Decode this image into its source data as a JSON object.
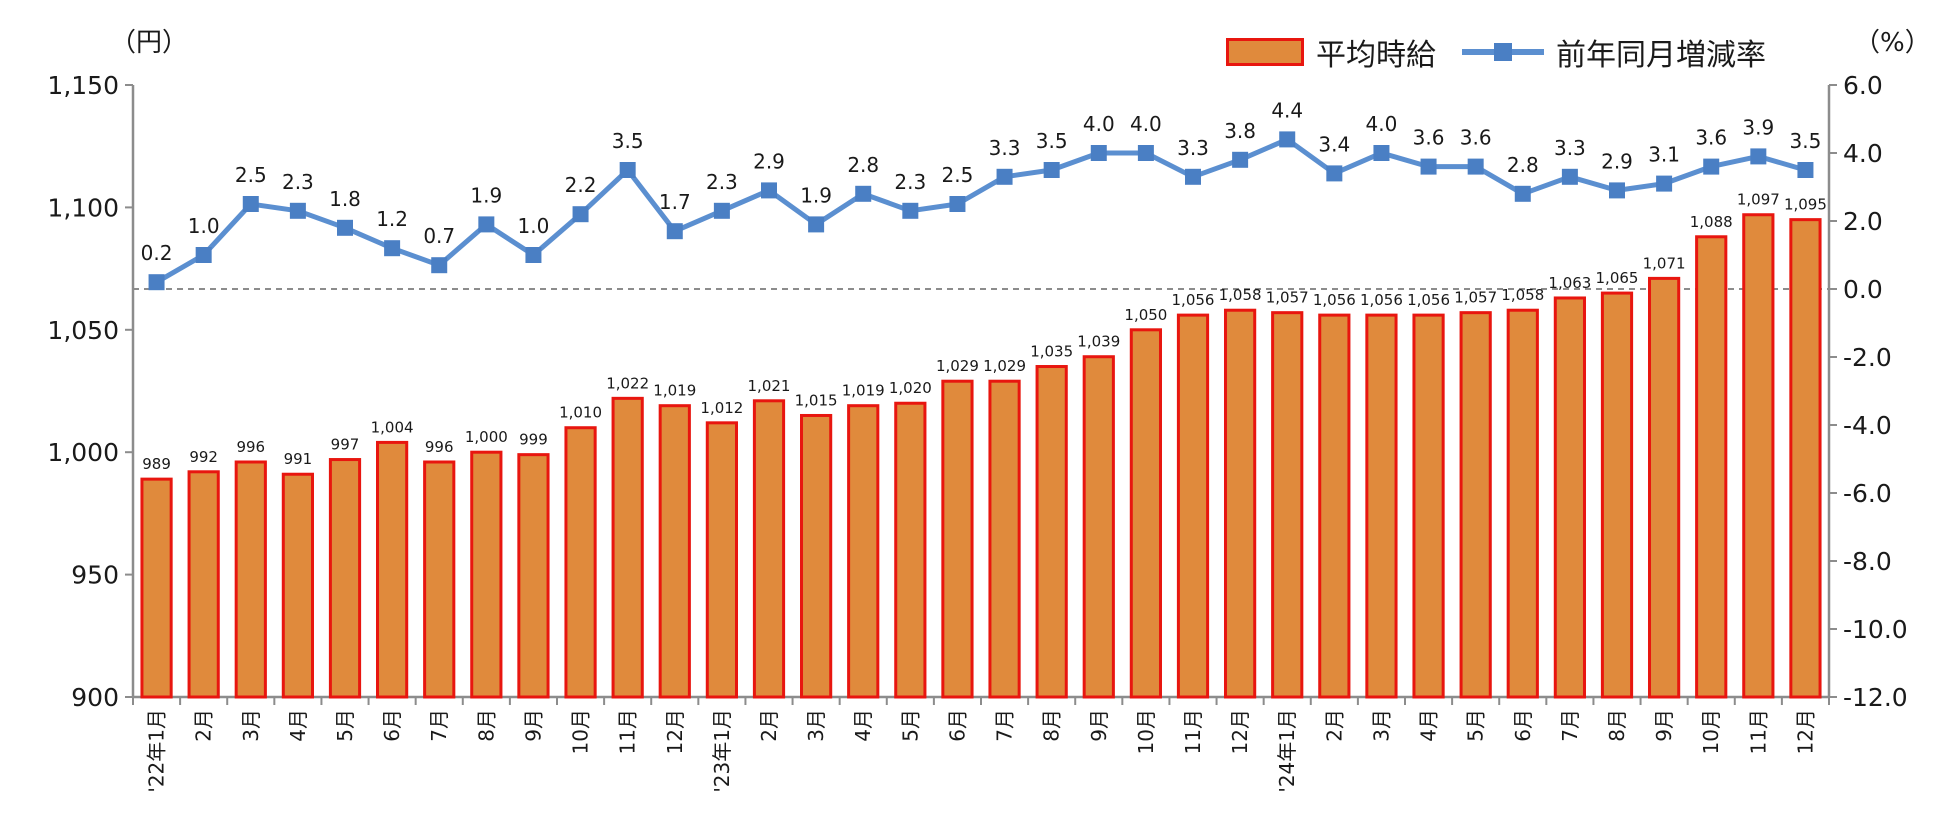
{
  "units": {
    "left": "（円）",
    "right": "（%）"
  },
  "legend": {
    "bar_label": "平均時給",
    "line_label": "前年同月増減率"
  },
  "colors": {
    "bar_fill": "#E08A3C",
    "bar_stroke": "#E8160F",
    "line": "#5B8FD0",
    "marker": "#4A7FC4",
    "axis": "#8c8c8c",
    "zero_line": "#8c8c8c"
  },
  "chart_data": {
    "type": "bar",
    "categories": [
      "'22年1月",
      "2月",
      "3月",
      "4月",
      "5月",
      "6月",
      "7月",
      "8月",
      "9月",
      "10月",
      "11月",
      "12月",
      "'23年1月",
      "2月",
      "3月",
      "4月",
      "5月",
      "6月",
      "7月",
      "8月",
      "9月",
      "10月",
      "11月",
      "12月",
      "'24年1月",
      "2月",
      "3月",
      "4月",
      "5月",
      "6月",
      "7月",
      "8月",
      "9月",
      "10月",
      "11月",
      "12月"
    ],
    "series": [
      {
        "name": "平均時給",
        "type": "bar",
        "axis": "left",
        "values": [
          989,
          992,
          996,
          991,
          997,
          1004,
          996,
          1000,
          999,
          1010,
          1022,
          1019,
          1012,
          1021,
          1015,
          1019,
          1020,
          1029,
          1029,
          1035,
          1039,
          1050,
          1056,
          1058,
          1057,
          1056,
          1056,
          1056,
          1057,
          1058,
          1063,
          1065,
          1071,
          1088,
          1097,
          1095
        ],
        "labels": [
          "989",
          "992",
          "996",
          "991",
          "997",
          "1,004",
          "996",
          "1,000",
          "999",
          "1,010",
          "1,022",
          "1,019",
          "1,012",
          "1,021",
          "1,015",
          "1,019",
          "1,020",
          "1,029",
          "1,029",
          "1,035",
          "1,039",
          "1,050",
          "1,056",
          "1,058",
          "1,057",
          "1,056",
          "1,056",
          "1,056",
          "1,057",
          "1,058",
          "1,063",
          "1,065",
          "1,071",
          "1,088",
          "1,097",
          "1,095"
        ]
      },
      {
        "name": "前年同月増減率",
        "type": "line",
        "axis": "right",
        "values": [
          0.2,
          1.0,
          2.5,
          2.3,
          1.8,
          1.2,
          0.7,
          1.9,
          1.0,
          2.2,
          3.5,
          1.7,
          2.3,
          2.9,
          1.9,
          2.8,
          2.3,
          2.5,
          3.3,
          3.5,
          4.0,
          4.0,
          3.3,
          3.8,
          4.4,
          3.4,
          4.0,
          3.6,
          3.6,
          2.8,
          3.3,
          2.9,
          3.1,
          3.6,
          3.9,
          3.5
        ],
        "labels": [
          "0.2",
          "1.0",
          "2.5",
          "2.3",
          "1.8",
          "1.2",
          "0.7",
          "1.9",
          "1.0",
          "2.2",
          "3.5",
          "1.7",
          "2.3",
          "2.9",
          "1.9",
          "2.8",
          "2.3",
          "2.5",
          "3.3",
          "3.5",
          "4.0",
          "4.0",
          "3.3",
          "3.8",
          "4.4",
          "3.4",
          "4.0",
          "3.6",
          "3.6",
          "2.8",
          "3.3",
          "2.9",
          "3.1",
          "3.6",
          "3.9",
          "3.5"
        ]
      }
    ],
    "y_left": {
      "ylim": [
        900,
        1150
      ],
      "ticks": [
        "900",
        "950",
        "1,000",
        "1,050",
        "1,100",
        "1,150"
      ],
      "tick_values": [
        900,
        950,
        1000,
        1050,
        1100,
        1150
      ]
    },
    "y_right": {
      "ylim": [
        -12.0,
        6.0
      ],
      "ticks": [
        "-12.0",
        "-10.0",
        "-8.0",
        "-6.0",
        "-4.0",
        "-2.0",
        "0.0",
        "2.0",
        "4.0",
        "6.0"
      ],
      "tick_values": [
        -12,
        -10,
        -8,
        -6,
        -4,
        -2,
        0,
        2,
        4,
        6
      ]
    },
    "grid": false,
    "reference_line": {
      "axis": "right",
      "value": 0.0,
      "style": "dashed"
    },
    "legend_position": "top-right"
  }
}
